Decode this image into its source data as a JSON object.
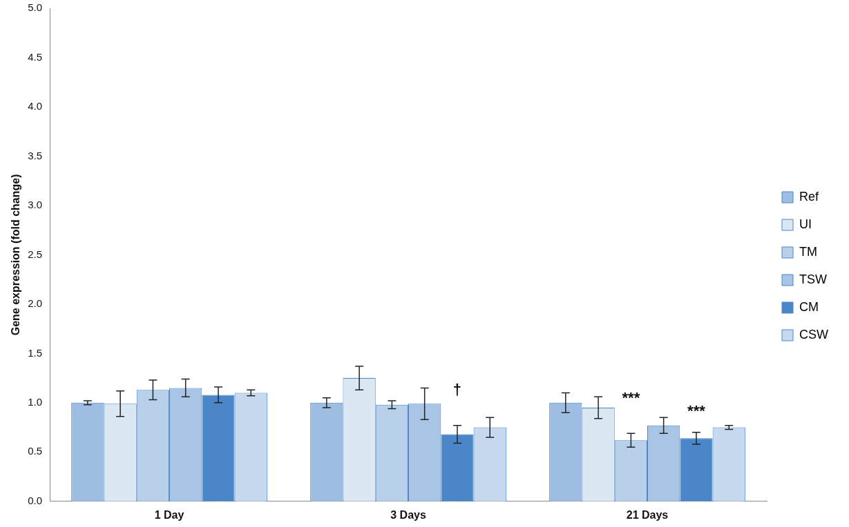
{
  "chart_data": {
    "type": "bar",
    "ylabel": "Gene expression (fold change)",
    "categories": [
      "1 Day",
      "3 Days",
      "21 Days"
    ],
    "series": [
      {
        "name": "Ref",
        "color": "#9dbde2",
        "values": [
          1.0,
          1.0,
          1.0
        ],
        "errors": [
          0.02,
          0.05,
          0.1
        ]
      },
      {
        "name": "UI",
        "color": "#dce7f4",
        "values": [
          0.99,
          1.25,
          0.95
        ],
        "errors": [
          0.13,
          0.12,
          0.11
        ]
      },
      {
        "name": "TM",
        "color": "#b9d0ea",
        "values": [
          1.13,
          0.98,
          0.62
        ],
        "errors": [
          0.1,
          0.04,
          0.07
        ]
      },
      {
        "name": "TSW",
        "color": "#a8c5e6",
        "values": [
          1.15,
          0.99,
          0.77
        ],
        "errors": [
          0.09,
          0.16,
          0.08
        ]
      },
      {
        "name": "CM",
        "color": "#4a86c8",
        "values": [
          1.08,
          0.68,
          0.64
        ],
        "errors": [
          0.08,
          0.09,
          0.06
        ]
      },
      {
        "name": "CSW",
        "color": "#c6d9ef",
        "values": [
          1.1,
          0.75,
          0.75
        ],
        "errors": [
          0.03,
          0.1,
          0.02
        ]
      }
    ],
    "ylim": [
      0,
      5
    ],
    "yticks": [
      {
        "value": 0,
        "label": "0.0"
      },
      {
        "value": 0.5,
        "label": "0.5"
      },
      {
        "value": 1,
        "label": "1.0"
      },
      {
        "value": 1.5,
        "label": "1.5"
      },
      {
        "value": 2,
        "label": "2.0"
      },
      {
        "value": 2.5,
        "label": "2.5"
      },
      {
        "value": 3,
        "label": "3.0"
      },
      {
        "value": 3.5,
        "label": "3.5"
      },
      {
        "value": 4,
        "label": "4.0"
      },
      {
        "value": 4.5,
        "label": "4.5"
      },
      {
        "value": 5,
        "label": "5.0"
      }
    ],
    "annotations": [
      "†",
      "***",
      "***"
    ],
    "grid": false,
    "legend": "right"
  }
}
